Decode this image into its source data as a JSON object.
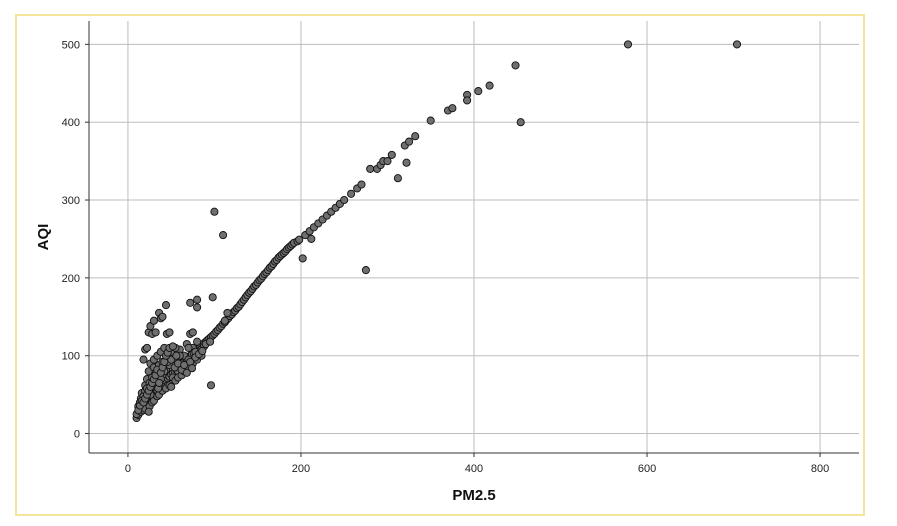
{
  "chart_data": {
    "type": "scatter",
    "title": "",
    "xlabel": "PM2.5",
    "ylabel": "AQI",
    "xlim": [
      -45,
      845
    ],
    "ylim": [
      -25,
      530
    ],
    "x_ticks": [
      0,
      200,
      400,
      600,
      800
    ],
    "y_ticks": [
      0,
      100,
      200,
      300,
      400,
      500
    ],
    "grid": true,
    "point_color": "#6f6f6f",
    "point_edge_color": "#111111",
    "frame_color": "#f5e49a",
    "series": [
      {
        "points": [
          [
            10,
            20
          ],
          [
            12,
            24
          ],
          [
            14,
            28
          ],
          [
            16,
            30
          ],
          [
            18,
            33
          ],
          [
            20,
            36
          ],
          [
            22,
            38
          ],
          [
            24,
            42
          ],
          [
            26,
            44
          ],
          [
            28,
            47
          ],
          [
            30,
            50
          ],
          [
            32,
            52
          ],
          [
            34,
            55
          ],
          [
            36,
            58
          ],
          [
            38,
            60
          ],
          [
            40,
            63
          ],
          [
            42,
            66
          ],
          [
            44,
            68
          ],
          [
            46,
            71
          ],
          [
            48,
            73
          ],
          [
            50,
            76
          ],
          [
            52,
            78
          ],
          [
            54,
            80
          ],
          [
            56,
            82
          ],
          [
            58,
            85
          ],
          [
            60,
            87
          ],
          [
            62,
            90
          ],
          [
            64,
            92
          ],
          [
            66,
            94
          ],
          [
            68,
            96
          ],
          [
            70,
            98
          ],
          [
            72,
            100
          ],
          [
            74,
            102
          ],
          [
            76,
            104
          ],
          [
            78,
            106
          ],
          [
            80,
            108
          ],
          [
            82,
            110
          ],
          [
            84,
            112
          ],
          [
            86,
            114
          ],
          [
            88,
            116
          ],
          [
            90,
            118
          ],
          [
            92,
            120
          ],
          [
            94,
            122
          ],
          [
            96,
            124
          ],
          [
            98,
            126
          ],
          [
            100,
            128
          ],
          [
            102,
            131
          ],
          [
            104,
            133
          ],
          [
            106,
            136
          ],
          [
            108,
            138
          ],
          [
            110,
            141
          ],
          [
            112,
            143
          ],
          [
            114,
            146
          ],
          [
            116,
            148
          ],
          [
            118,
            151
          ],
          [
            120,
            153
          ],
          [
            122,
            156
          ],
          [
            124,
            158
          ],
          [
            126,
            161
          ],
          [
            128,
            163
          ],
          [
            130,
            166
          ],
          [
            132,
            169
          ],
          [
            134,
            172
          ],
          [
            136,
            175
          ],
          [
            138,
            178
          ],
          [
            140,
            181
          ],
          [
            142,
            183
          ],
          [
            144,
            186
          ],
          [
            146,
            189
          ],
          [
            148,
            191
          ],
          [
            150,
            194
          ],
          [
            152,
            197
          ],
          [
            154,
            199
          ],
          [
            156,
            202
          ],
          [
            158,
            205
          ],
          [
            160,
            207
          ],
          [
            162,
            210
          ],
          [
            164,
            213
          ],
          [
            166,
            215
          ],
          [
            168,
            218
          ],
          [
            170,
            221
          ],
          [
            172,
            223
          ],
          [
            174,
            226
          ],
          [
            176,
            228
          ],
          [
            178,
            230
          ],
          [
            180,
            232
          ],
          [
            182,
            234
          ],
          [
            184,
            237
          ],
          [
            186,
            239
          ],
          [
            188,
            241
          ],
          [
            190,
            243
          ],
          [
            192,
            245
          ],
          [
            196,
            247
          ],
          [
            198,
            249
          ],
          [
            205,
            255
          ],
          [
            210,
            260
          ],
          [
            215,
            265
          ],
          [
            220,
            270
          ],
          [
            225,
            275
          ],
          [
            230,
            280
          ],
          [
            235,
            285
          ],
          [
            240,
            290
          ],
          [
            245,
            295
          ],
          [
            250,
            300
          ],
          [
            258,
            308
          ],
          [
            265,
            315
          ],
          [
            270,
            320
          ],
          [
            280,
            340
          ],
          [
            288,
            340
          ],
          [
            292,
            345
          ],
          [
            295,
            350
          ],
          [
            300,
            350
          ],
          [
            305,
            358
          ],
          [
            320,
            370
          ],
          [
            325,
            375
          ],
          [
            332,
            382
          ],
          [
            350,
            402
          ],
          [
            370,
            415
          ],
          [
            375,
            418
          ],
          [
            392,
            435
          ],
          [
            392,
            428
          ],
          [
            405,
            440
          ],
          [
            418,
            447
          ],
          [
            448,
            473
          ],
          [
            578,
            500
          ],
          [
            704,
            500
          ],
          [
            10,
            25
          ],
          [
            12,
            35
          ],
          [
            14,
            40
          ],
          [
            15,
            45
          ],
          [
            16,
            52
          ],
          [
            18,
            48
          ],
          [
            20,
            55
          ],
          [
            20,
            62
          ],
          [
            22,
            70
          ],
          [
            22,
            58
          ],
          [
            24,
            80
          ],
          [
            25,
            65
          ],
          [
            26,
            90
          ],
          [
            28,
            72
          ],
          [
            30,
            85
          ],
          [
            30,
            95
          ],
          [
            32,
            78
          ],
          [
            34,
            100
          ],
          [
            35,
            68
          ],
          [
            36,
            88
          ],
          [
            38,
            105
          ],
          [
            40,
            92
          ],
          [
            40,
            75
          ],
          [
            42,
            110
          ],
          [
            44,
            82
          ],
          [
            45,
            98
          ],
          [
            46,
            62
          ],
          [
            48,
            88
          ],
          [
            50,
            105
          ],
          [
            52,
            72
          ],
          [
            55,
            95
          ],
          [
            58,
            80
          ],
          [
            60,
            108
          ],
          [
            62,
            90
          ],
          [
            65,
            100
          ],
          [
            68,
            115
          ],
          [
            70,
            95
          ],
          [
            72,
            128
          ],
          [
            75,
            110
          ],
          [
            78,
            105
          ],
          [
            80,
            118
          ],
          [
            85,
            108
          ],
          [
            88,
            112
          ],
          [
            90,
            115
          ],
          [
            95,
            118
          ],
          [
            18,
            95
          ],
          [
            20,
            108
          ],
          [
            22,
            110
          ],
          [
            24,
            130
          ],
          [
            26,
            138
          ],
          [
            28,
            128
          ],
          [
            30,
            145
          ],
          [
            32,
            130
          ],
          [
            36,
            155
          ],
          [
            38,
            148
          ],
          [
            40,
            150
          ],
          [
            44,
            165
          ],
          [
            45,
            128
          ],
          [
            48,
            130
          ],
          [
            55,
            110
          ],
          [
            60,
            100
          ],
          [
            70,
            110
          ],
          [
            72,
            168
          ],
          [
            75,
            130
          ],
          [
            80,
            162
          ],
          [
            80,
            172
          ],
          [
            98,
            175
          ],
          [
            112,
            145
          ],
          [
            115,
            155
          ],
          [
            96,
            62
          ],
          [
            100,
            285
          ],
          [
            110,
            255
          ],
          [
            202,
            225
          ],
          [
            212,
            250
          ],
          [
            275,
            210
          ],
          [
            312,
            328
          ],
          [
            322,
            348
          ],
          [
            454,
            400
          ],
          [
            15,
            28
          ],
          [
            18,
            30
          ],
          [
            20,
            32
          ],
          [
            25,
            35
          ],
          [
            28,
            40
          ],
          [
            30,
            42
          ],
          [
            34,
            48
          ],
          [
            36,
            50
          ],
          [
            40,
            55
          ],
          [
            44,
            58
          ],
          [
            48,
            62
          ],
          [
            50,
            60
          ],
          [
            55,
            68
          ],
          [
            58,
            72
          ],
          [
            62,
            75
          ],
          [
            65,
            80
          ],
          [
            70,
            85
          ],
          [
            75,
            90
          ],
          [
            80,
            95
          ],
          [
            85,
            100
          ],
          [
            24,
            28
          ],
          [
            26,
            50
          ],
          [
            28,
            60
          ],
          [
            32,
            65
          ],
          [
            35,
            58
          ],
          [
            38,
            70
          ],
          [
            42,
            80
          ],
          [
            46,
            92
          ],
          [
            50,
            95
          ],
          [
            54,
            85
          ],
          [
            56,
            100
          ],
          [
            58,
            90
          ],
          [
            62,
            82
          ],
          [
            65,
            88
          ],
          [
            68,
            78
          ],
          [
            72,
            92
          ],
          [
            74,
            84
          ],
          [
            78,
            98
          ],
          [
            82,
            102
          ],
          [
            86,
            106
          ],
          [
            12,
            30
          ],
          [
            14,
            36
          ],
          [
            16,
            42
          ],
          [
            18,
            40
          ],
          [
            20,
            45
          ],
          [
            22,
            50
          ],
          [
            24,
            55
          ],
          [
            26,
            60
          ],
          [
            28,
            65
          ],
          [
            30,
            70
          ],
          [
            32,
            75
          ],
          [
            34,
            82
          ],
          [
            36,
            65
          ],
          [
            38,
            78
          ],
          [
            40,
            85
          ],
          [
            42,
            92
          ],
          [
            44,
            100
          ],
          [
            46,
            104
          ],
          [
            48,
            110
          ],
          [
            52,
            112
          ]
        ]
      }
    ]
  }
}
